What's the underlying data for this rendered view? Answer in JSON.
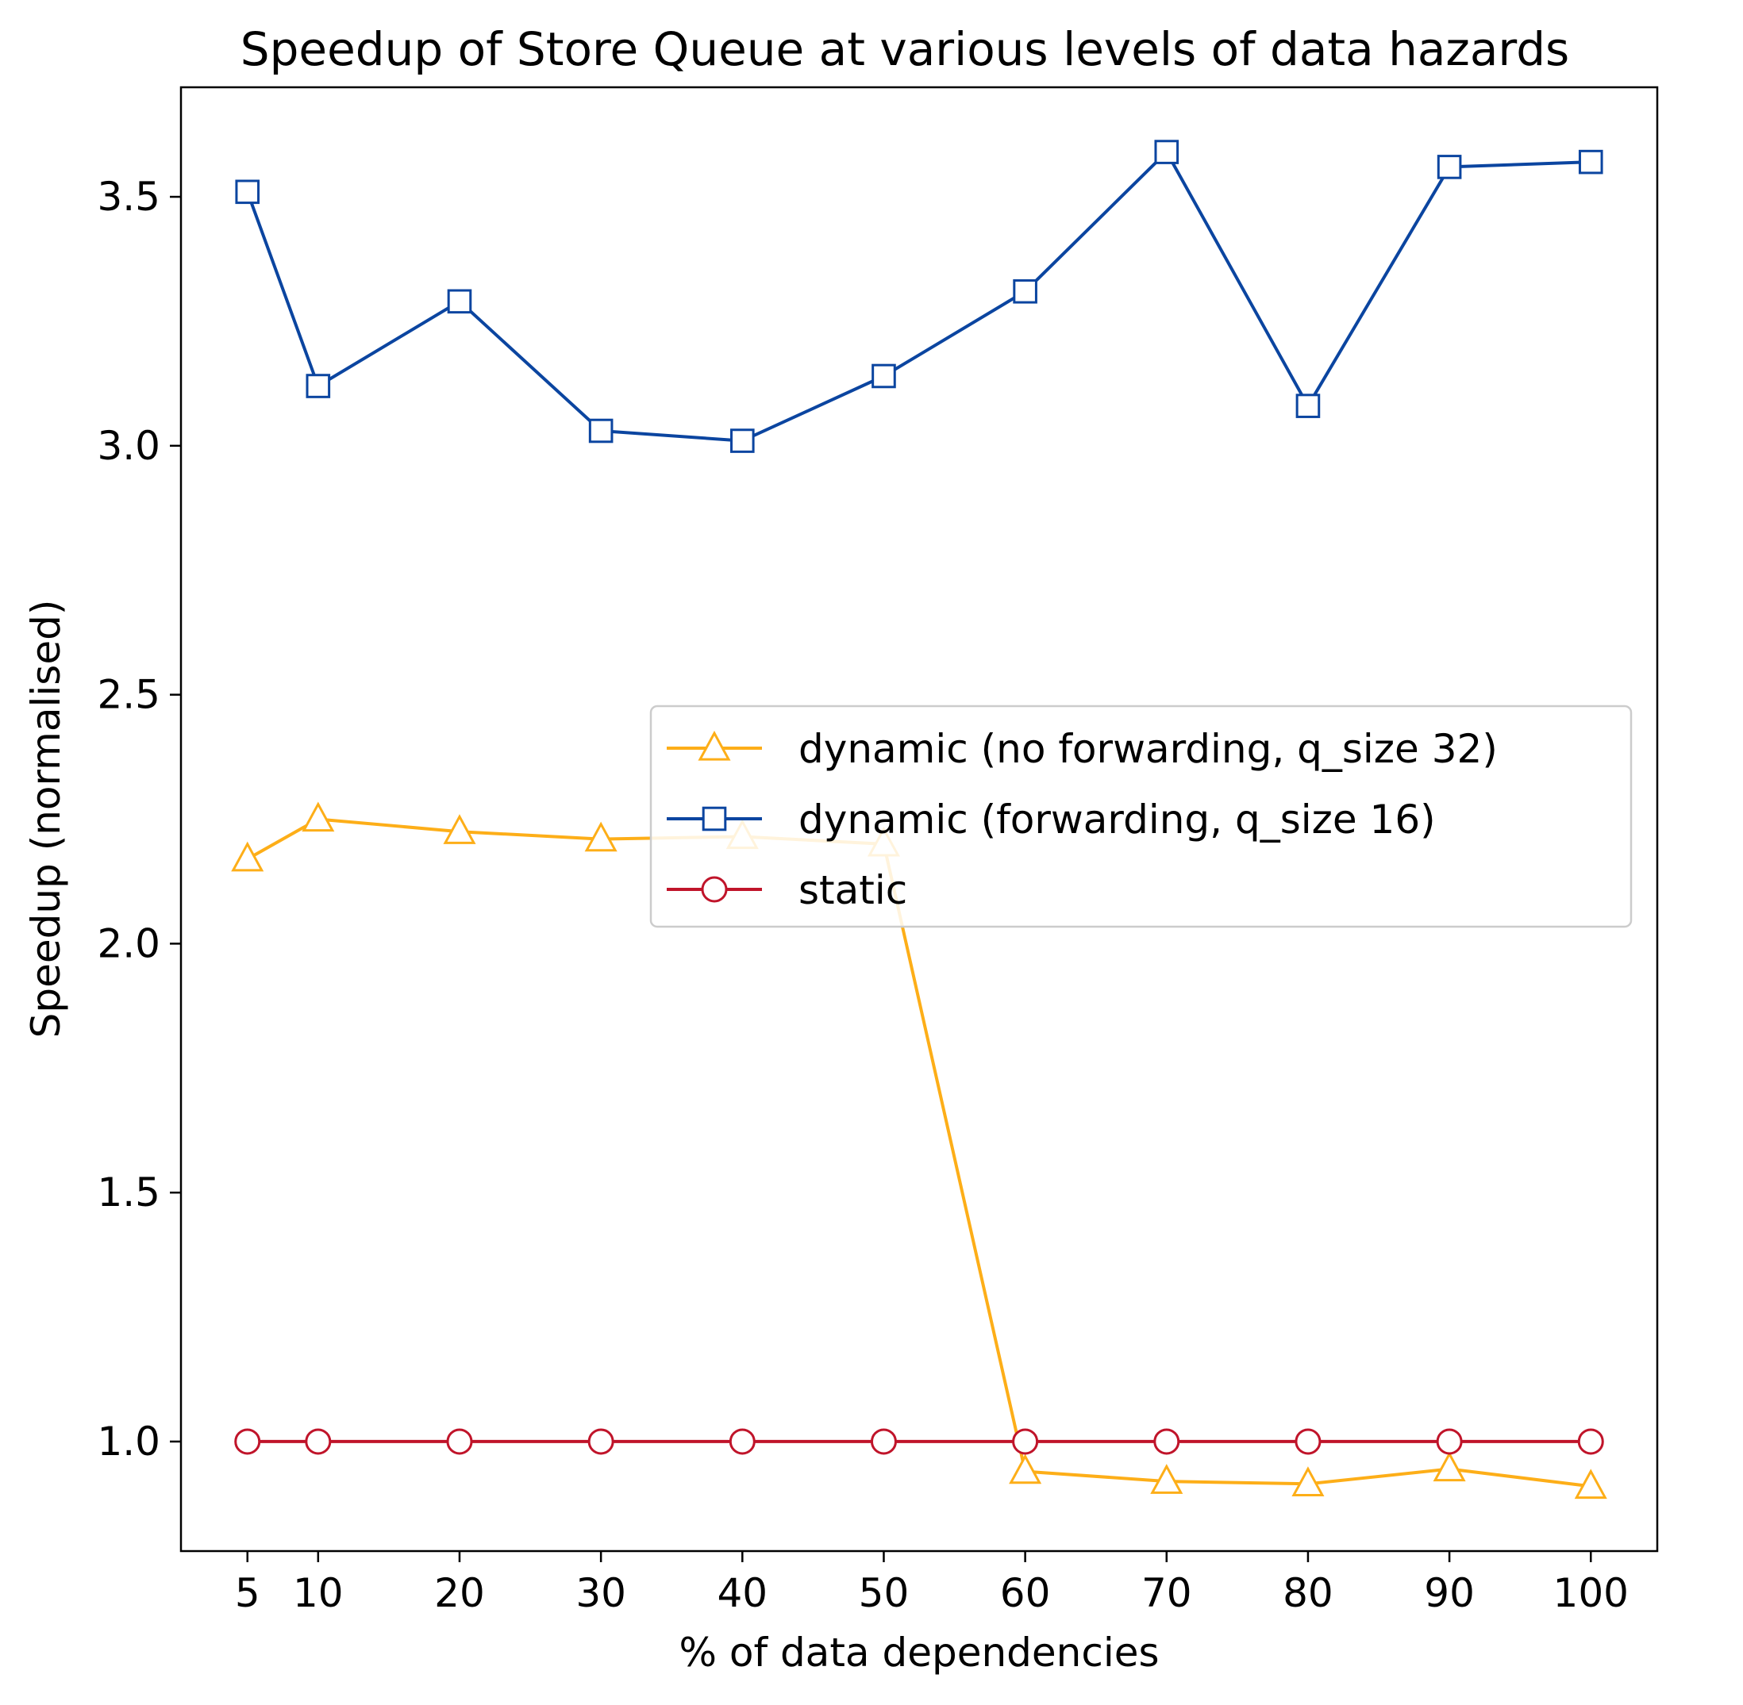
{
  "chart_data": {
    "type": "line",
    "title": "Speedup of Store Queue at various levels of data hazards",
    "xlabel": "% of data dependencies",
    "ylabel": "Speedup (normalised)",
    "x": [
      5,
      10,
      20,
      30,
      40,
      50,
      60,
      70,
      80,
      90,
      100
    ],
    "x_ticks": [
      "5",
      "10",
      "20",
      "30",
      "40",
      "50",
      "60",
      "70",
      "80",
      "90",
      "100"
    ],
    "xlim": [
      0.3,
      104.7
    ],
    "ylim": [
      0.78,
      3.72
    ],
    "y_ticks": [
      1.0,
      1.5,
      2.0,
      2.5,
      3.0,
      3.5
    ],
    "y_tick_labels": [
      "1.0",
      "1.5",
      "2.0",
      "2.5",
      "3.0",
      "3.5"
    ],
    "grid": false,
    "legend_position": "center-right",
    "series": [
      {
        "name": "dynamic (no forwarding, q_size 32)",
        "color": "#FDAE18",
        "marker": "triangle",
        "values": [
          2.17,
          2.25,
          2.225,
          2.21,
          2.215,
          2.2,
          0.94,
          0.92,
          0.915,
          0.945,
          0.91
        ]
      },
      {
        "name": "dynamic (forwarding, q_size 16)",
        "color": "#0B45A0",
        "marker": "square",
        "values": [
          3.51,
          3.12,
          3.29,
          3.03,
          3.01,
          3.14,
          3.31,
          3.59,
          3.08,
          3.56,
          3.57
        ]
      },
      {
        "name": "static",
        "color": "#C0142A",
        "marker": "circle",
        "values": [
          1.0,
          1.0,
          1.0,
          1.0,
          1.0,
          1.0,
          1.0,
          1.0,
          1.0,
          1.0,
          1.0
        ]
      }
    ]
  }
}
